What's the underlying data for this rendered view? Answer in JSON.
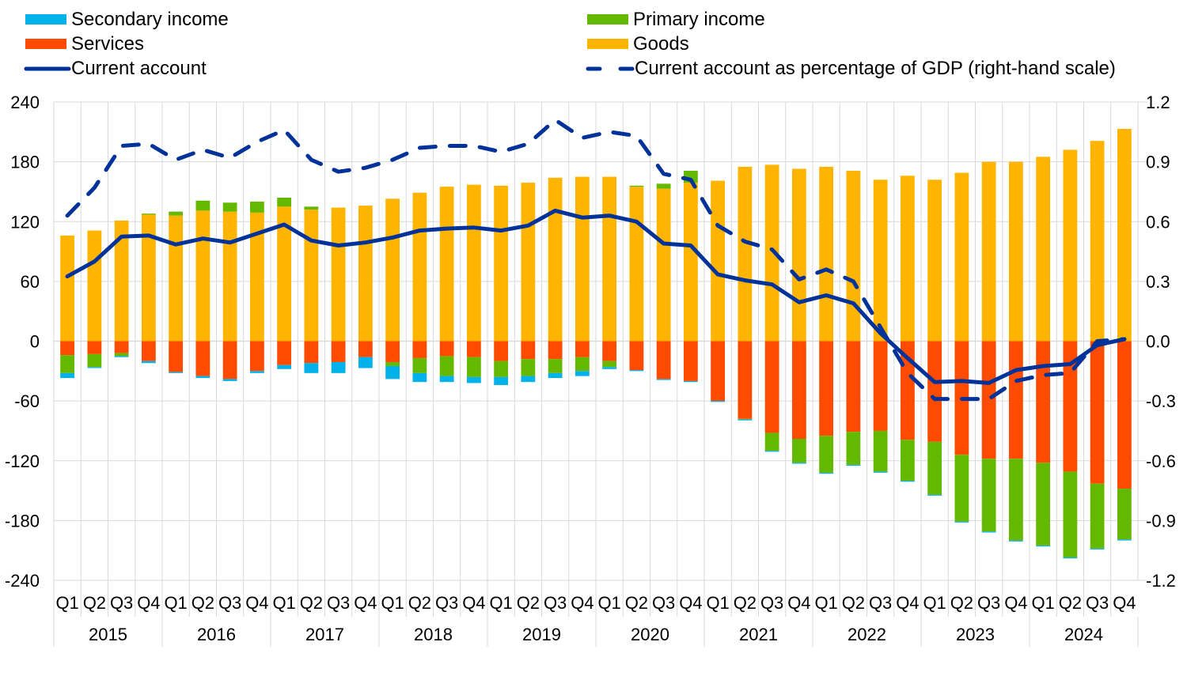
{
  "chart_data": {
    "type": "bar",
    "stacked": true,
    "title": "",
    "xlabel": "",
    "ylabel": "",
    "ylim": [
      -240,
      240
    ],
    "y2lim": [
      -1.2,
      1.2
    ],
    "yticks": [
      "240",
      "180",
      "120",
      "60",
      "0",
      "-60",
      "-120",
      "-180",
      "-240"
    ],
    "y2ticks": [
      "1.2",
      "0.9",
      "0.6",
      "0.3",
      "0.0",
      "-0.3",
      "-0.6",
      "-0.9",
      "-1.2"
    ],
    "grid": true,
    "legend_position": "top",
    "quarters": [
      "Q1",
      "Q2",
      "Q3",
      "Q4",
      "Q1",
      "Q2",
      "Q3",
      "Q4",
      "Q1",
      "Q2",
      "Q3",
      "Q4",
      "Q1",
      "Q2",
      "Q3",
      "Q4",
      "Q1",
      "Q2",
      "Q3",
      "Q4",
      "Q1",
      "Q2",
      "Q3",
      "Q4",
      "Q1",
      "Q2",
      "Q3",
      "Q4",
      "Q1",
      "Q2",
      "Q3",
      "Q4",
      "Q1",
      "Q2",
      "Q3",
      "Q4",
      "Q1",
      "Q2",
      "Q3",
      "Q4"
    ],
    "years": [
      "2015",
      "2016",
      "2017",
      "2018",
      "2019",
      "2020",
      "2021",
      "2022",
      "2023",
      "2024"
    ],
    "colors": {
      "secondary_income": "#00b1ea",
      "primary_income": "#65b800",
      "services": "#ff4b00",
      "goods": "#ffb400",
      "current_account": "#003299",
      "grid": "#d9d9d9"
    },
    "series": [
      {
        "name": "Goods",
        "key": "goods",
        "values": [
          106,
          111,
          121,
          127,
          126,
          131,
          130,
          129,
          135,
          132,
          134,
          136,
          143,
          149,
          155,
          157,
          156,
          159,
          164,
          165,
          165,
          155,
          153,
          159,
          161,
          175,
          177,
          173,
          175,
          171,
          162,
          166,
          162,
          169,
          180,
          180,
          185,
          192,
          201,
          213
        ]
      },
      {
        "name": "Primary income",
        "key": "primary_income",
        "values": [
          -18,
          -13,
          -3,
          1,
          4,
          10,
          9,
          11,
          9,
          3,
          0,
          0,
          -4,
          -15,
          -20,
          -20,
          -16,
          -17,
          -14,
          -14,
          -6,
          1,
          5,
          13,
          0,
          0,
          0,
          0,
          0,
          0,
          0,
          0,
          0,
          0,
          0,
          0,
          0,
          0,
          0,
          0
        ]
      },
      {
        "name": "Services",
        "key": "services",
        "values": [
          -14,
          -13,
          -12,
          -20,
          -31,
          -35,
          -38,
          -30,
          -24,
          -22,
          -21,
          -16,
          -21,
          -17,
          -15,
          -16,
          -20,
          -18,
          -18,
          -16,
          -20,
          -29,
          -38,
          -40,
          -60,
          -78,
          -92,
          -98,
          -95,
          -91,
          -90,
          -99,
          -101,
          -114,
          -118,
          -118,
          -122,
          -131,
          -143,
          -148
        ]
      },
      {
        "name": "Secondary income",
        "key": "secondary_income",
        "values": [
          -5,
          -1,
          -1,
          -2,
          -1,
          -2,
          -2,
          -2,
          -4,
          -10,
          -11,
          -11,
          -13,
          -9,
          -6,
          -6,
          -8,
          -6,
          -5,
          -5,
          -2,
          -1,
          -1,
          -1,
          -1,
          -1,
          -1,
          -1,
          -1,
          -1,
          -1,
          -1,
          -1,
          -1,
          -1,
          -1,
          -1,
          -1,
          -1,
          -1
        ]
      }
    ],
    "series_negative_extra": {
      "primary_income_negative_2020_2024": [
        0,
        0,
        0,
        -1,
        0,
        -0.5,
        -18,
        -24,
        -37,
        -33,
        -41,
        -41,
        -53,
        -67,
        -73,
        -82,
        -83,
        -86,
        -65,
        -51
      ]
    },
    "lines": [
      {
        "name": "Current account",
        "axis": "left",
        "style": "solid",
        "values": [
          65,
          80,
          105,
          106,
          97,
          103,
          99,
          108,
          117,
          101,
          96,
          99,
          104,
          111,
          113,
          114,
          111,
          116,
          131,
          124,
          126,
          120,
          98,
          96,
          67,
          61,
          57,
          39,
          46,
          38,
          8,
          -17,
          -41,
          -40,
          -42,
          -29,
          -25,
          -23,
          -4,
          2
        ]
      },
      {
        "name": "Current account as percentage of GDP (right-hand scale)",
        "axis": "right",
        "style": "dashed",
        "values": [
          0.63,
          0.77,
          0.98,
          0.99,
          0.91,
          0.96,
          0.92,
          1.0,
          1.06,
          0.91,
          0.85,
          0.87,
          0.91,
          0.97,
          0.98,
          0.98,
          0.95,
          0.99,
          1.11,
          1.02,
          1.05,
          1.03,
          0.84,
          0.81,
          0.58,
          0.5,
          0.46,
          0.31,
          0.36,
          0.3,
          0.07,
          -0.16,
          -0.29,
          -0.29,
          -0.29,
          -0.2,
          -0.17,
          -0.16,
          0,
          0.01
        ]
      }
    ]
  },
  "legend": {
    "secondary_income": "Secondary income",
    "primary_income": "Primary income",
    "services": "Services",
    "goods": "Goods",
    "current_account": "Current account",
    "current_account_gdp": "Current account as percentage of GDP (right-hand scale)"
  }
}
